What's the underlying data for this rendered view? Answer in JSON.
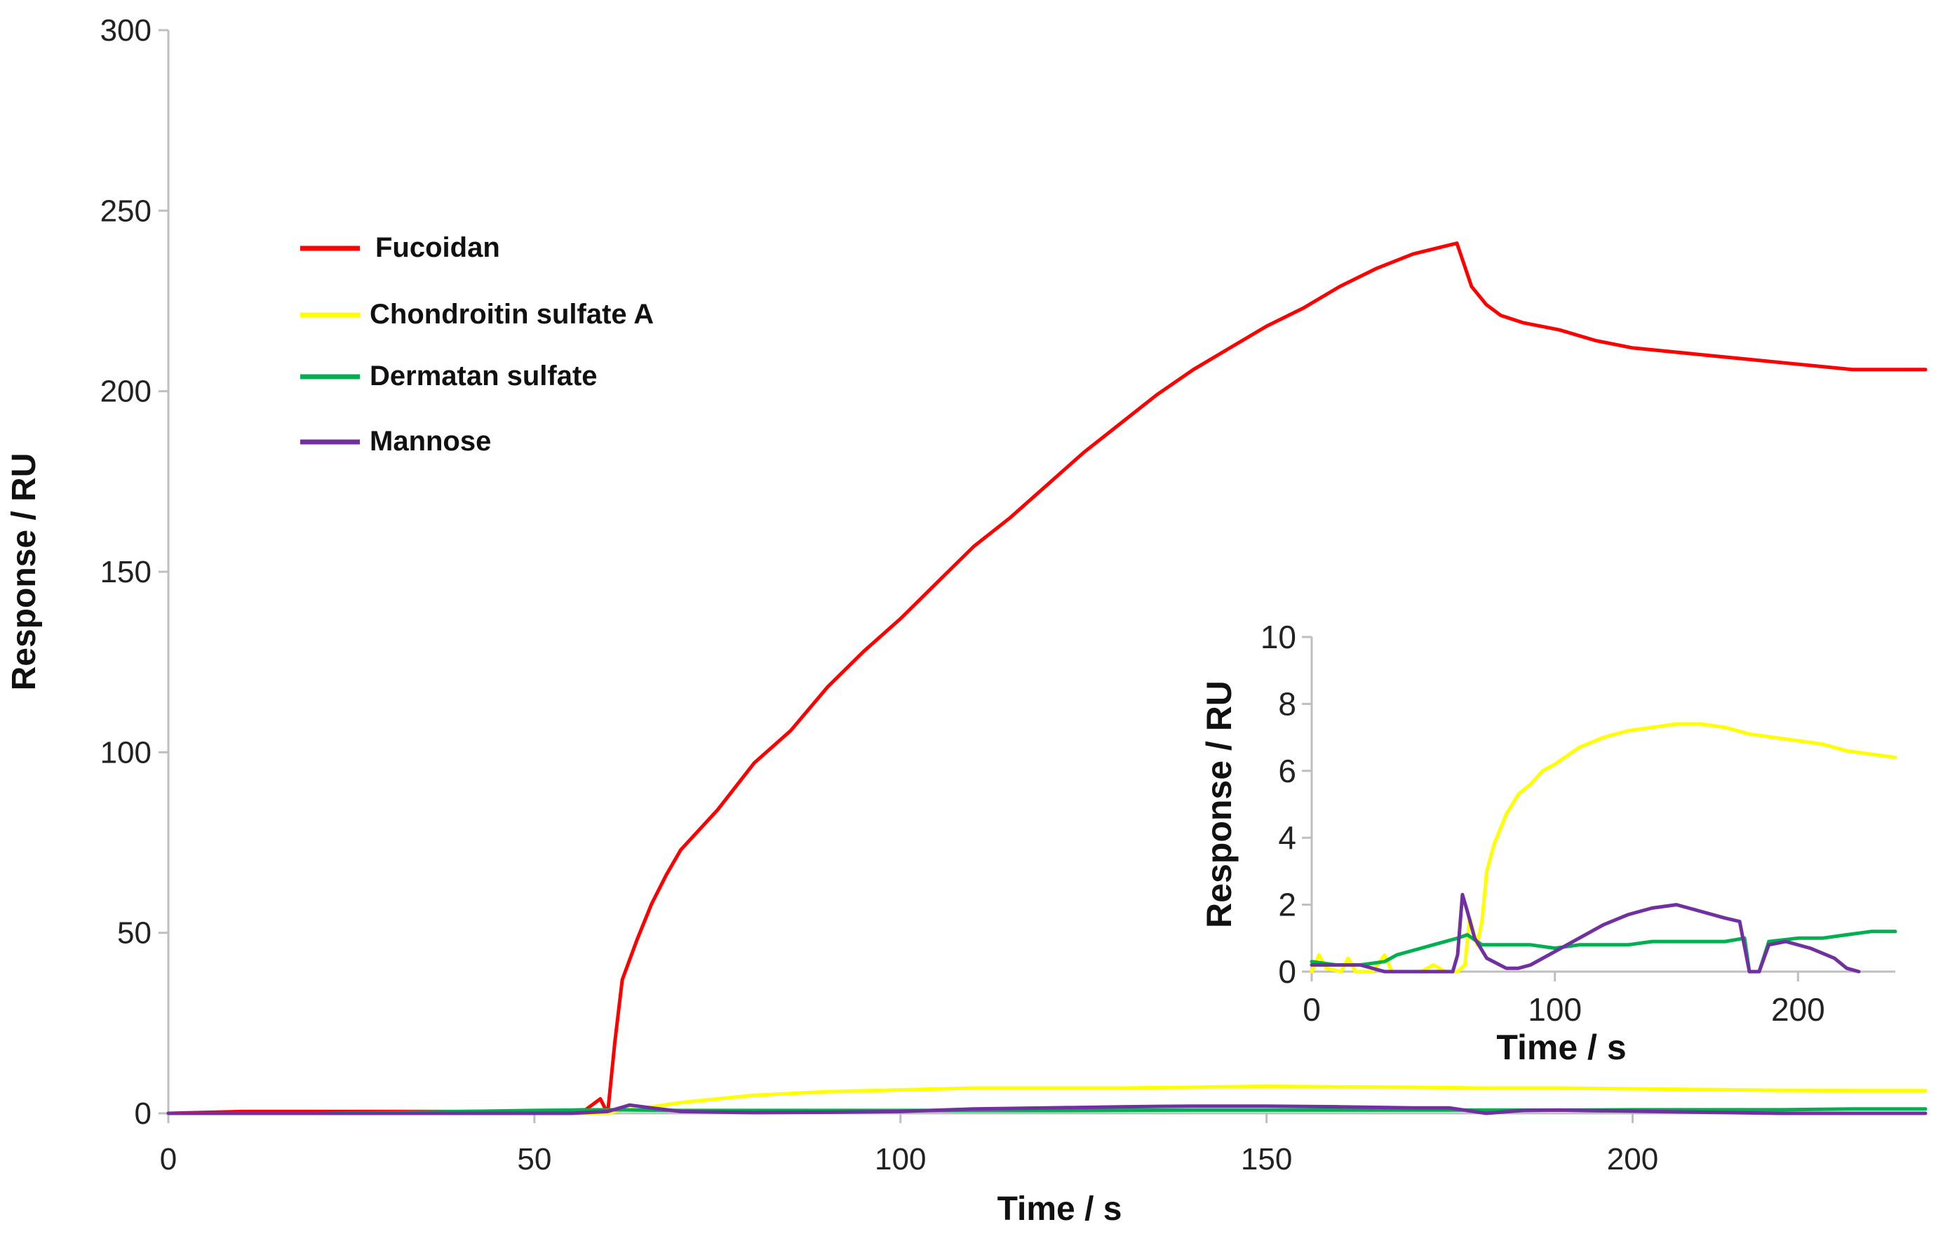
{
  "chart_data": [
    {
      "type": "line",
      "title": "",
      "xlabel": "Time / s",
      "ylabel": "Response / RU",
      "xlim": [
        0,
        240
      ],
      "ylim": [
        0,
        300
      ],
      "xticks": [
        0,
        50,
        100,
        150,
        200
      ],
      "yticks": [
        0,
        50,
        100,
        150,
        200,
        250,
        300
      ],
      "legend_position": "top-left",
      "series": [
        {
          "name": "Fucoidan",
          "color": "#ff0000",
          "points": [
            [
              0,
              0
            ],
            [
              10,
              0.5
            ],
            [
              20,
              0.5
            ],
            [
              30,
              0.5
            ],
            [
              40,
              0.5
            ],
            [
              50,
              0.5
            ],
            [
              57,
              1
            ],
            [
              59,
              4
            ],
            [
              60,
              0
            ],
            [
              61,
              20
            ],
            [
              62,
              37
            ],
            [
              64,
              48
            ],
            [
              66,
              58
            ],
            [
              68,
              66
            ],
            [
              70,
              73
            ],
            [
              75,
              84
            ],
            [
              80,
              97
            ],
            [
              85,
              106
            ],
            [
              90,
              118
            ],
            [
              95,
              128
            ],
            [
              100,
              137
            ],
            [
              105,
              147
            ],
            [
              110,
              157
            ],
            [
              115,
              165
            ],
            [
              120,
              174
            ],
            [
              125,
              183
            ],
            [
              130,
              191
            ],
            [
              135,
              199
            ],
            [
              140,
              206
            ],
            [
              145,
              212
            ],
            [
              150,
              218
            ],
            [
              155,
              223
            ],
            [
              160,
              229
            ],
            [
              165,
              234
            ],
            [
              170,
              238
            ],
            [
              174,
              240
            ],
            [
              176,
              241
            ],
            [
              178,
              229
            ],
            [
              180,
              224
            ],
            [
              182,
              221
            ],
            [
              185,
              219
            ],
            [
              190,
              217
            ],
            [
              195,
              214
            ],
            [
              200,
              212
            ],
            [
              210,
              210
            ],
            [
              220,
              208
            ],
            [
              230,
              206
            ],
            [
              240,
              206
            ]
          ]
        },
        {
          "name": "Chondroitin sulfate A",
          "color": "#ffff00",
          "points": [
            [
              0,
              0
            ],
            [
              10,
              0
            ],
            [
              20,
              0
            ],
            [
              30,
              0
            ],
            [
              40,
              0
            ],
            [
              50,
              0
            ],
            [
              60,
              0
            ],
            [
              62,
              1
            ],
            [
              65,
              1.5
            ],
            [
              70,
              3
            ],
            [
              75,
              4
            ],
            [
              80,
              5
            ],
            [
              90,
              6
            ],
            [
              100,
              6.5
            ],
            [
              110,
              7
            ],
            [
              120,
              7
            ],
            [
              130,
              7
            ],
            [
              140,
              7.2
            ],
            [
              150,
              7.5
            ],
            [
              160,
              7.3
            ],
            [
              170,
              7.2
            ],
            [
              180,
              7
            ],
            [
              190,
              7
            ],
            [
              200,
              6.8
            ],
            [
              210,
              6.6
            ],
            [
              220,
              6.4
            ],
            [
              230,
              6.3
            ],
            [
              240,
              6.3
            ]
          ]
        },
        {
          "name": "Dermatan sulfate",
          "color": "#00b050",
          "points": [
            [
              0,
              0
            ],
            [
              20,
              0
            ],
            [
              40,
              0.5
            ],
            [
              50,
              0.8
            ],
            [
              60,
              1
            ],
            [
              70,
              0.8
            ],
            [
              80,
              0.8
            ],
            [
              100,
              0.8
            ],
            [
              120,
              0.8
            ],
            [
              140,
              0.9
            ],
            [
              160,
              0.9
            ],
            [
              170,
              0.9
            ],
            [
              180,
              0.9
            ],
            [
              190,
              0.9
            ],
            [
              200,
              1
            ],
            [
              210,
              1
            ],
            [
              220,
              1
            ],
            [
              230,
              1.2
            ],
            [
              240,
              1.2
            ]
          ]
        },
        {
          "name": "Mannose",
          "color": "#7030a0",
          "points": [
            [
              0,
              0
            ],
            [
              20,
              0
            ],
            [
              40,
              0
            ],
            [
              55,
              0
            ],
            [
              60,
              0.5
            ],
            [
              63,
              2.3
            ],
            [
              66,
              1.5
            ],
            [
              70,
              0.5
            ],
            [
              80,
              0.2
            ],
            [
              90,
              0.3
            ],
            [
              100,
              0.5
            ],
            [
              110,
              1.2
            ],
            [
              120,
              1.5
            ],
            [
              130,
              1.8
            ],
            [
              140,
              2
            ],
            [
              150,
              2
            ],
            [
              160,
              1.8
            ],
            [
              170,
              1.5
            ],
            [
              175,
              1.5
            ],
            [
              180,
              0
            ],
            [
              185,
              0.8
            ],
            [
              190,
              0.9
            ],
            [
              200,
              0.6
            ],
            [
              210,
              0.3
            ],
            [
              220,
              0
            ],
            [
              240,
              0
            ]
          ]
        }
      ]
    },
    {
      "type": "line",
      "title": "",
      "xlabel": "Time / s",
      "ylabel": "Response / RU",
      "xlim": [
        0,
        240
      ],
      "ylim": [
        0,
        10
      ],
      "xticks": [
        0,
        100,
        200
      ],
      "yticks": [
        0,
        2,
        4,
        6,
        8,
        10
      ],
      "legend_position": "none",
      "series": [
        {
          "name": "Chondroitin sulfate A",
          "color": "#ffff00",
          "points": [
            [
              0,
              0
            ],
            [
              3,
              0.5
            ],
            [
              6,
              0.1
            ],
            [
              12,
              0
            ],
            [
              15,
              0.4
            ],
            [
              18,
              0
            ],
            [
              25,
              0
            ],
            [
              30,
              0.5
            ],
            [
              33,
              0
            ],
            [
              45,
              0
            ],
            [
              50,
              0.2
            ],
            [
              55,
              0
            ],
            [
              60,
              0
            ],
            [
              63,
              0.2
            ],
            [
              65,
              1.6
            ],
            [
              68,
              0.8
            ],
            [
              70,
              1.5
            ],
            [
              72,
              3
            ],
            [
              75,
              3.8
            ],
            [
              80,
              4.7
            ],
            [
              85,
              5.3
            ],
            [
              90,
              5.6
            ],
            [
              95,
              6
            ],
            [
              100,
              6.2
            ],
            [
              110,
              6.7
            ],
            [
              120,
              7
            ],
            [
              130,
              7.2
            ],
            [
              140,
              7.3
            ],
            [
              150,
              7.4
            ],
            [
              160,
              7.4
            ],
            [
              170,
              7.3
            ],
            [
              180,
              7.1
            ],
            [
              190,
              7
            ],
            [
              200,
              6.9
            ],
            [
              210,
              6.8
            ],
            [
              220,
              6.6
            ],
            [
              230,
              6.5
            ],
            [
              240,
              6.4
            ]
          ]
        },
        {
          "name": "Dermatan sulfate",
          "color": "#00b050",
          "points": [
            [
              0,
              0.3
            ],
            [
              10,
              0.2
            ],
            [
              20,
              0.2
            ],
            [
              30,
              0.3
            ],
            [
              35,
              0.5
            ],
            [
              40,
              0.6
            ],
            [
              50,
              0.8
            ],
            [
              60,
              1
            ],
            [
              64,
              1.1
            ],
            [
              70,
              0.8
            ],
            [
              80,
              0.8
            ],
            [
              90,
              0.8
            ],
            [
              100,
              0.7
            ],
            [
              110,
              0.8
            ],
            [
              120,
              0.8
            ],
            [
              130,
              0.8
            ],
            [
              140,
              0.9
            ],
            [
              150,
              0.9
            ],
            [
              160,
              0.9
            ],
            [
              170,
              0.9
            ],
            [
              178,
              1
            ],
            [
              180,
              0
            ],
            [
              184,
              0
            ],
            [
              188,
              0.9
            ],
            [
              200,
              1
            ],
            [
              210,
              1
            ],
            [
              220,
              1.1
            ],
            [
              230,
              1.2
            ],
            [
              240,
              1.2
            ]
          ]
        },
        {
          "name": "Mannose",
          "color": "#7030a0",
          "points": [
            [
              0,
              0.2
            ],
            [
              10,
              0.2
            ],
            [
              20,
              0.2
            ],
            [
              30,
              0
            ],
            [
              40,
              0
            ],
            [
              50,
              0
            ],
            [
              58,
              0
            ],
            [
              60,
              0.5
            ],
            [
              62,
              2.3
            ],
            [
              64,
              1.8
            ],
            [
              67,
              1
            ],
            [
              72,
              0.4
            ],
            [
              80,
              0.1
            ],
            [
              85,
              0.1
            ],
            [
              90,
              0.2
            ],
            [
              100,
              0.6
            ],
            [
              110,
              1
            ],
            [
              120,
              1.4
            ],
            [
              130,
              1.7
            ],
            [
              140,
              1.9
            ],
            [
              150,
              2
            ],
            [
              160,
              1.8
            ],
            [
              170,
              1.6
            ],
            [
              176,
              1.5
            ],
            [
              180,
              0
            ],
            [
              184,
              0
            ],
            [
              188,
              0.8
            ],
            [
              195,
              0.9
            ],
            [
              205,
              0.7
            ],
            [
              215,
              0.4
            ],
            [
              220,
              0.1
            ],
            [
              225,
              0
            ]
          ]
        }
      ]
    }
  ]
}
